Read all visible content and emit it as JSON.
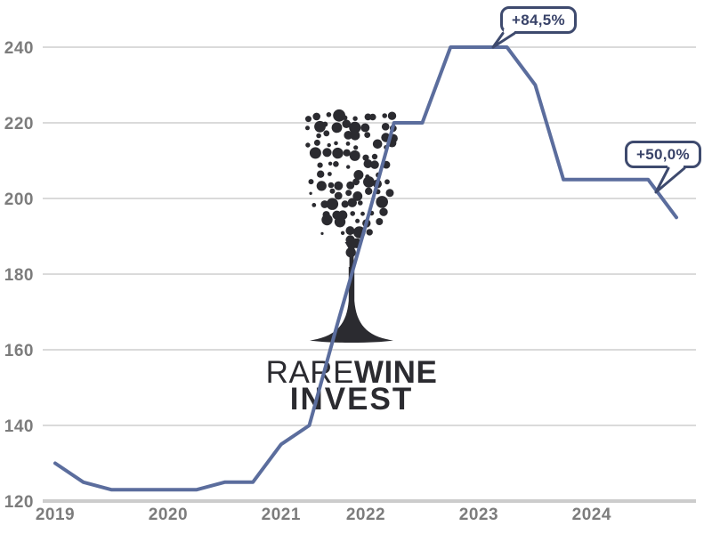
{
  "colors": {
    "background": "#ffffff",
    "line": "#5b6d9d",
    "callout_border": "#3e4a6e",
    "callout_text": "#394369",
    "grid": "#dadada",
    "axis": "#cccccc",
    "tick_label": "#7c7c7c",
    "watermark": "#2b2b30"
  },
  "watermark": {
    "brand_rare": "RARE",
    "brand_wine": "WINE",
    "brand_invest": "INVEST"
  },
  "chart_data": {
    "type": "line",
    "title": "",
    "grid": "horizontal-only",
    "legend": false,
    "y_axis": {
      "min": 120,
      "max": 240,
      "ticks": [
        240,
        220,
        200,
        180,
        160,
        140,
        120
      ]
    },
    "x_axis": {
      "ticks": [
        {
          "label": "2019",
          "point_index": 0
        },
        {
          "label": "2020",
          "point_index": 4
        },
        {
          "label": "2021",
          "point_index": 8
        },
        {
          "label": "2022",
          "point_index": 11
        },
        {
          "label": "2023",
          "point_index": 15
        },
        {
          "label": "2024",
          "point_index": 19
        }
      ]
    },
    "series": [
      {
        "values": [
          130,
          125,
          123,
          123,
          123,
          123,
          125,
          125,
          135,
          140,
          167,
          193,
          220,
          220,
          240,
          240,
          240,
          230,
          205,
          205,
          205,
          205,
          195
        ]
      }
    ],
    "annotations": [
      {
        "label": "+84,5%",
        "point_index": 16,
        "value": 240
      },
      {
        "label": "+50,0%",
        "point_index": 22,
        "value": 195
      }
    ]
  }
}
